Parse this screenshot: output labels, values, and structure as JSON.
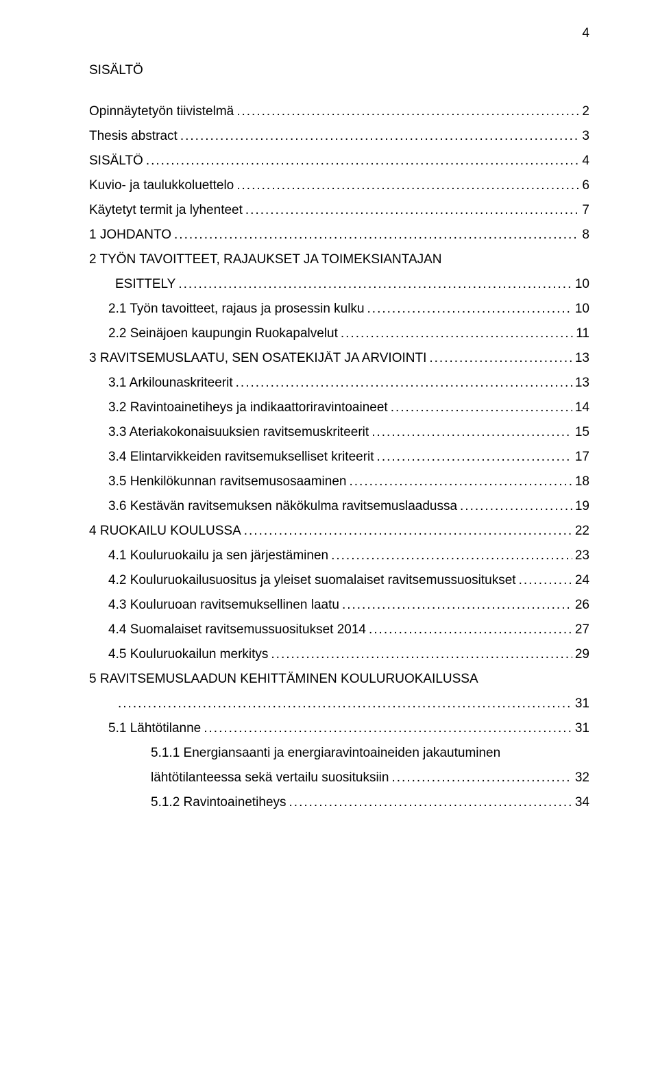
{
  "page_number": "4",
  "title": "SISÄLTÖ",
  "toc": [
    {
      "label": "Opinnäytetyön tiivistelmä",
      "page": "2",
      "indent": 0
    },
    {
      "label": "Thesis abstract",
      "page": "3",
      "indent": 0
    },
    {
      "label": "SISÄLTÖ",
      "page": "4",
      "indent": 0
    },
    {
      "label": "Kuvio- ja taulukkoluettelo",
      "page": "6",
      "indent": 0
    },
    {
      "label": "Käytetyt termit ja lyhenteet",
      "page": "7",
      "indent": 0
    },
    {
      "label": "1  JOHDANTO",
      "page": "8",
      "indent": 0
    },
    {
      "label_line1": "2  TYÖN TAVOITTEET, RAJAUKSET JA TOIMEKSIANTAJAN",
      "label_line2": "ESITTELY",
      "page": "10",
      "indent": 0,
      "multiline": true
    },
    {
      "label": "2.1 Työn tavoitteet, rajaus ja prosessin kulku",
      "page": "10",
      "indent": 1
    },
    {
      "label": "2.2 Seinäjoen kaupungin Ruokapalvelut",
      "page": "11",
      "indent": 1
    },
    {
      "label": "3  RAVITSEMUSLAATU, SEN OSATEKIJÄT JA ARVIOINTI",
      "page": "13",
      "indent": 0
    },
    {
      "label": "3.1 Arkilounaskriteerit",
      "page": "13",
      "indent": 1
    },
    {
      "label": "3.2 Ravintoainetiheys ja indikaattoriravintoaineet",
      "page": "14",
      "indent": 1
    },
    {
      "label": "3.3 Ateriakokonaisuuksien ravitsemuskriteerit",
      "page": "15",
      "indent": 1
    },
    {
      "label": "3.4 Elintarvikkeiden ravitsemukselliset kriteerit",
      "page": "17",
      "indent": 1
    },
    {
      "label": "3.5 Henkilökunnan ravitsemusosaaminen",
      "page": "18",
      "indent": 1
    },
    {
      "label": "3.6 Kestävän ravitsemuksen näkökulma ravitsemuslaadussa",
      "page": "19",
      "indent": 1
    },
    {
      "label": "4  RUOKAILU KOULUSSA",
      "page": "22",
      "indent": 0
    },
    {
      "label": "4.1 Kouluruokailu ja sen järjestäminen",
      "page": "23",
      "indent": 1
    },
    {
      "label": "4.2 Kouluruokailusuositus ja yleiset suomalaiset ravitsemussuositukset",
      "page": "24",
      "indent": 1
    },
    {
      "label": "4.3 Kouluruoan ravitsemuksellinen laatu",
      "page": "26",
      "indent": 1
    },
    {
      "label": "4.4 Suomalaiset ravitsemussuositukset 2014",
      "page": "27",
      "indent": 1
    },
    {
      "label": "4.5 Kouluruokailun merkitys",
      "page": "29",
      "indent": 1
    },
    {
      "label_line1": "5  RAVITSEMUSLAADUN KEHITTÄMINEN KOULURUOKAILUSSA",
      "label_line2": "",
      "page": "31",
      "indent": 0,
      "multiline": true
    },
    {
      "label": "5.1 Lähtötilanne",
      "page": "31",
      "indent": 1
    },
    {
      "label_line1": "5.1.1  Energiansaanti ja energiaravintoaineiden jakautuminen",
      "label_line2": "lähtötilanteessa sekä vertailu suosituksiin",
      "page": "32",
      "indent": 2,
      "multiline": true
    },
    {
      "label": "5.1.2  Ravintoainetiheys",
      "page": "34",
      "indent": 2
    }
  ]
}
